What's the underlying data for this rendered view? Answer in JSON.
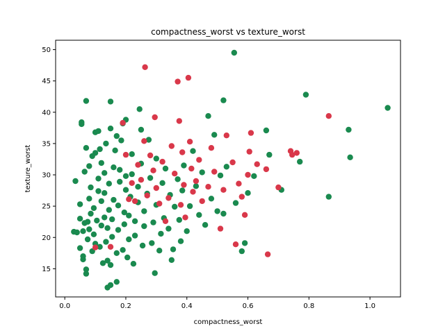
{
  "chart_data": {
    "type": "scatter",
    "title": "compactness_worst vs texture_worst",
    "xlabel": "compactness_worst",
    "ylabel": "texture_worst",
    "xlim": [
      -0.03,
      1.1
    ],
    "ylim": [
      10.5,
      51.5
    ],
    "xticks": [
      "0.0",
      "0.2",
      "0.4",
      "0.6",
      "0.8",
      "1.0"
    ],
    "yticks": [
      "15",
      "20",
      "25",
      "30",
      "35",
      "40",
      "45",
      "50"
    ],
    "grid": false,
    "legend": "none",
    "series": [
      {
        "color": "#1a8a4f",
        "points": [
          [
            0.03,
            20.9
          ],
          [
            0.035,
            29.0
          ],
          [
            0.04,
            20.8
          ],
          [
            0.05,
            18.3
          ],
          [
            0.05,
            23.0
          ],
          [
            0.05,
            25.3
          ],
          [
            0.055,
            38.1
          ],
          [
            0.055,
            38.4
          ],
          [
            0.06,
            16.5
          ],
          [
            0.06,
            17.0
          ],
          [
            0.06,
            21.0
          ],
          [
            0.065,
            22.3
          ],
          [
            0.065,
            30.5
          ],
          [
            0.07,
            41.8
          ],
          [
            0.07,
            34.3
          ],
          [
            0.07,
            14.2
          ],
          [
            0.07,
            14.9
          ],
          [
            0.075,
            19.7
          ],
          [
            0.075,
            22.5
          ],
          [
            0.08,
            21.3
          ],
          [
            0.08,
            26.2
          ],
          [
            0.08,
            31.4
          ],
          [
            0.085,
            28.0
          ],
          [
            0.085,
            23.8
          ],
          [
            0.09,
            33.0
          ],
          [
            0.09,
            17.8
          ],
          [
            0.095,
            20.5
          ],
          [
            0.095,
            24.7
          ],
          [
            0.1,
            33.5
          ],
          [
            0.1,
            36.8
          ],
          [
            0.1,
            19.0
          ],
          [
            0.105,
            22.7
          ],
          [
            0.11,
            27.4
          ],
          [
            0.11,
            29.4
          ],
          [
            0.11,
            37.0
          ],
          [
            0.115,
            34.1
          ],
          [
            0.115,
            18.5
          ],
          [
            0.12,
            21.9
          ],
          [
            0.12,
            25.8
          ],
          [
            0.12,
            31.9
          ],
          [
            0.125,
            15.9
          ],
          [
            0.13,
            23.2
          ],
          [
            0.13,
            27.1
          ],
          [
            0.13,
            30.3
          ],
          [
            0.135,
            35.0
          ],
          [
            0.135,
            19.3
          ],
          [
            0.14,
            12.0
          ],
          [
            0.14,
            16.3
          ],
          [
            0.14,
            21.5
          ],
          [
            0.145,
            24.4
          ],
          [
            0.145,
            28.6
          ],
          [
            0.15,
            41.7
          ],
          [
            0.15,
            37.4
          ],
          [
            0.15,
            12.4
          ],
          [
            0.15,
            15.6
          ],
          [
            0.155,
            20.1
          ],
          [
            0.155,
            22.9
          ],
          [
            0.16,
            26.0
          ],
          [
            0.16,
            31.2
          ],
          [
            0.165,
            33.9
          ],
          [
            0.17,
            36.2
          ],
          [
            0.17,
            12.9
          ],
          [
            0.17,
            17.5
          ],
          [
            0.175,
            21.2
          ],
          [
            0.175,
            25.1
          ],
          [
            0.18,
            28.9
          ],
          [
            0.18,
            30.8
          ],
          [
            0.185,
            35.5
          ],
          [
            0.19,
            38.2
          ],
          [
            0.19,
            18.0
          ],
          [
            0.195,
            22.1
          ],
          [
            0.195,
            24.0
          ],
          [
            0.2,
            27.6
          ],
          [
            0.2,
            29.8
          ],
          [
            0.2,
            38.8
          ],
          [
            0.205,
            16.8
          ],
          [
            0.21,
            19.7
          ],
          [
            0.21,
            23.5
          ],
          [
            0.215,
            26.5
          ],
          [
            0.22,
            30.1
          ],
          [
            0.22,
            33.3
          ],
          [
            0.225,
            15.8
          ],
          [
            0.23,
            20.3
          ],
          [
            0.23,
            22.6
          ],
          [
            0.24,
            25.6
          ],
          [
            0.24,
            28.1
          ],
          [
            0.245,
            40.5
          ],
          [
            0.25,
            31.8
          ],
          [
            0.25,
            37.2
          ],
          [
            0.255,
            18.7
          ],
          [
            0.26,
            21.8
          ],
          [
            0.26,
            24.2
          ],
          [
            0.27,
            27.0
          ],
          [
            0.275,
            35.6
          ],
          [
            0.28,
            29.5
          ],
          [
            0.285,
            19.1
          ],
          [
            0.29,
            22.4
          ],
          [
            0.295,
            14.3
          ],
          [
            0.3,
            25.2
          ],
          [
            0.3,
            32.6
          ],
          [
            0.31,
            17.9
          ],
          [
            0.315,
            20.6
          ],
          [
            0.32,
            28.7
          ],
          [
            0.325,
            23.1
          ],
          [
            0.33,
            31.0
          ],
          [
            0.34,
            21.4
          ],
          [
            0.345,
            26.8
          ],
          [
            0.35,
            16.4
          ],
          [
            0.355,
            18.1
          ],
          [
            0.36,
            24.9
          ],
          [
            0.37,
            29.3
          ],
          [
            0.375,
            22.8
          ],
          [
            0.38,
            19.4
          ],
          [
            0.385,
            27.5
          ],
          [
            0.39,
            31.5
          ],
          [
            0.4,
            21.0
          ],
          [
            0.41,
            25.0
          ],
          [
            0.42,
            33.8
          ],
          [
            0.43,
            28.2
          ],
          [
            0.44,
            23.6
          ],
          [
            0.45,
            30.4
          ],
          [
            0.46,
            22.0
          ],
          [
            0.47,
            39.4
          ],
          [
            0.48,
            26.2
          ],
          [
            0.49,
            36.4
          ],
          [
            0.5,
            24.2
          ],
          [
            0.51,
            29.9
          ],
          [
            0.52,
            41.9
          ],
          [
            0.52,
            23.8
          ],
          [
            0.53,
            31.3
          ],
          [
            0.555,
            49.5
          ],
          [
            0.56,
            25.5
          ],
          [
            0.58,
            17.8
          ],
          [
            0.59,
            19.1
          ],
          [
            0.6,
            27.1
          ],
          [
            0.62,
            29.8
          ],
          [
            0.66,
            37.1
          ],
          [
            0.67,
            33.2
          ],
          [
            0.71,
            27.6
          ],
          [
            0.77,
            32.1
          ],
          [
            0.79,
            42.8
          ],
          [
            0.865,
            26.5
          ],
          [
            0.93,
            37.2
          ],
          [
            0.935,
            32.8
          ],
          [
            1.058,
            40.7
          ]
        ]
      },
      {
        "color": "#d9384a",
        "points": [
          [
            0.1,
            18.4
          ],
          [
            0.15,
            18.5
          ],
          [
            0.19,
            38.3
          ],
          [
            0.2,
            33.2
          ],
          [
            0.21,
            26.1
          ],
          [
            0.22,
            28.7
          ],
          [
            0.23,
            25.8
          ],
          [
            0.24,
            31.6
          ],
          [
            0.25,
            29.2
          ],
          [
            0.26,
            35.4
          ],
          [
            0.263,
            47.2
          ],
          [
            0.27,
            26.7
          ],
          [
            0.28,
            33.1
          ],
          [
            0.29,
            30.7
          ],
          [
            0.295,
            39.2
          ],
          [
            0.3,
            27.9
          ],
          [
            0.31,
            25.4
          ],
          [
            0.32,
            32.1
          ],
          [
            0.33,
            22.6
          ],
          [
            0.34,
            26.3
          ],
          [
            0.35,
            34.6
          ],
          [
            0.36,
            30.2
          ],
          [
            0.37,
            44.9
          ],
          [
            0.375,
            38.6
          ],
          [
            0.38,
            25.2
          ],
          [
            0.385,
            33.6
          ],
          [
            0.39,
            28.4
          ],
          [
            0.395,
            23.2
          ],
          [
            0.405,
            45.5
          ],
          [
            0.41,
            35.3
          ],
          [
            0.415,
            31.0
          ],
          [
            0.42,
            27.3
          ],
          [
            0.43,
            29.0
          ],
          [
            0.44,
            32.4
          ],
          [
            0.45,
            25.8
          ],
          [
            0.47,
            28.1
          ],
          [
            0.48,
            34.3
          ],
          [
            0.49,
            30.5
          ],
          [
            0.51,
            21.4
          ],
          [
            0.52,
            27.6
          ],
          [
            0.53,
            36.3
          ],
          [
            0.55,
            32.0
          ],
          [
            0.56,
            18.9
          ],
          [
            0.57,
            28.6
          ],
          [
            0.58,
            26.5
          ],
          [
            0.59,
            23.6
          ],
          [
            0.6,
            30.0
          ],
          [
            0.605,
            33.7
          ],
          [
            0.61,
            36.7
          ],
          [
            0.63,
            31.7
          ],
          [
            0.66,
            30.9
          ],
          [
            0.665,
            17.3
          ],
          [
            0.7,
            28.0
          ],
          [
            0.74,
            33.8
          ],
          [
            0.745,
            33.2
          ],
          [
            0.76,
            33.5
          ],
          [
            0.865,
            39.4
          ]
        ]
      }
    ]
  }
}
